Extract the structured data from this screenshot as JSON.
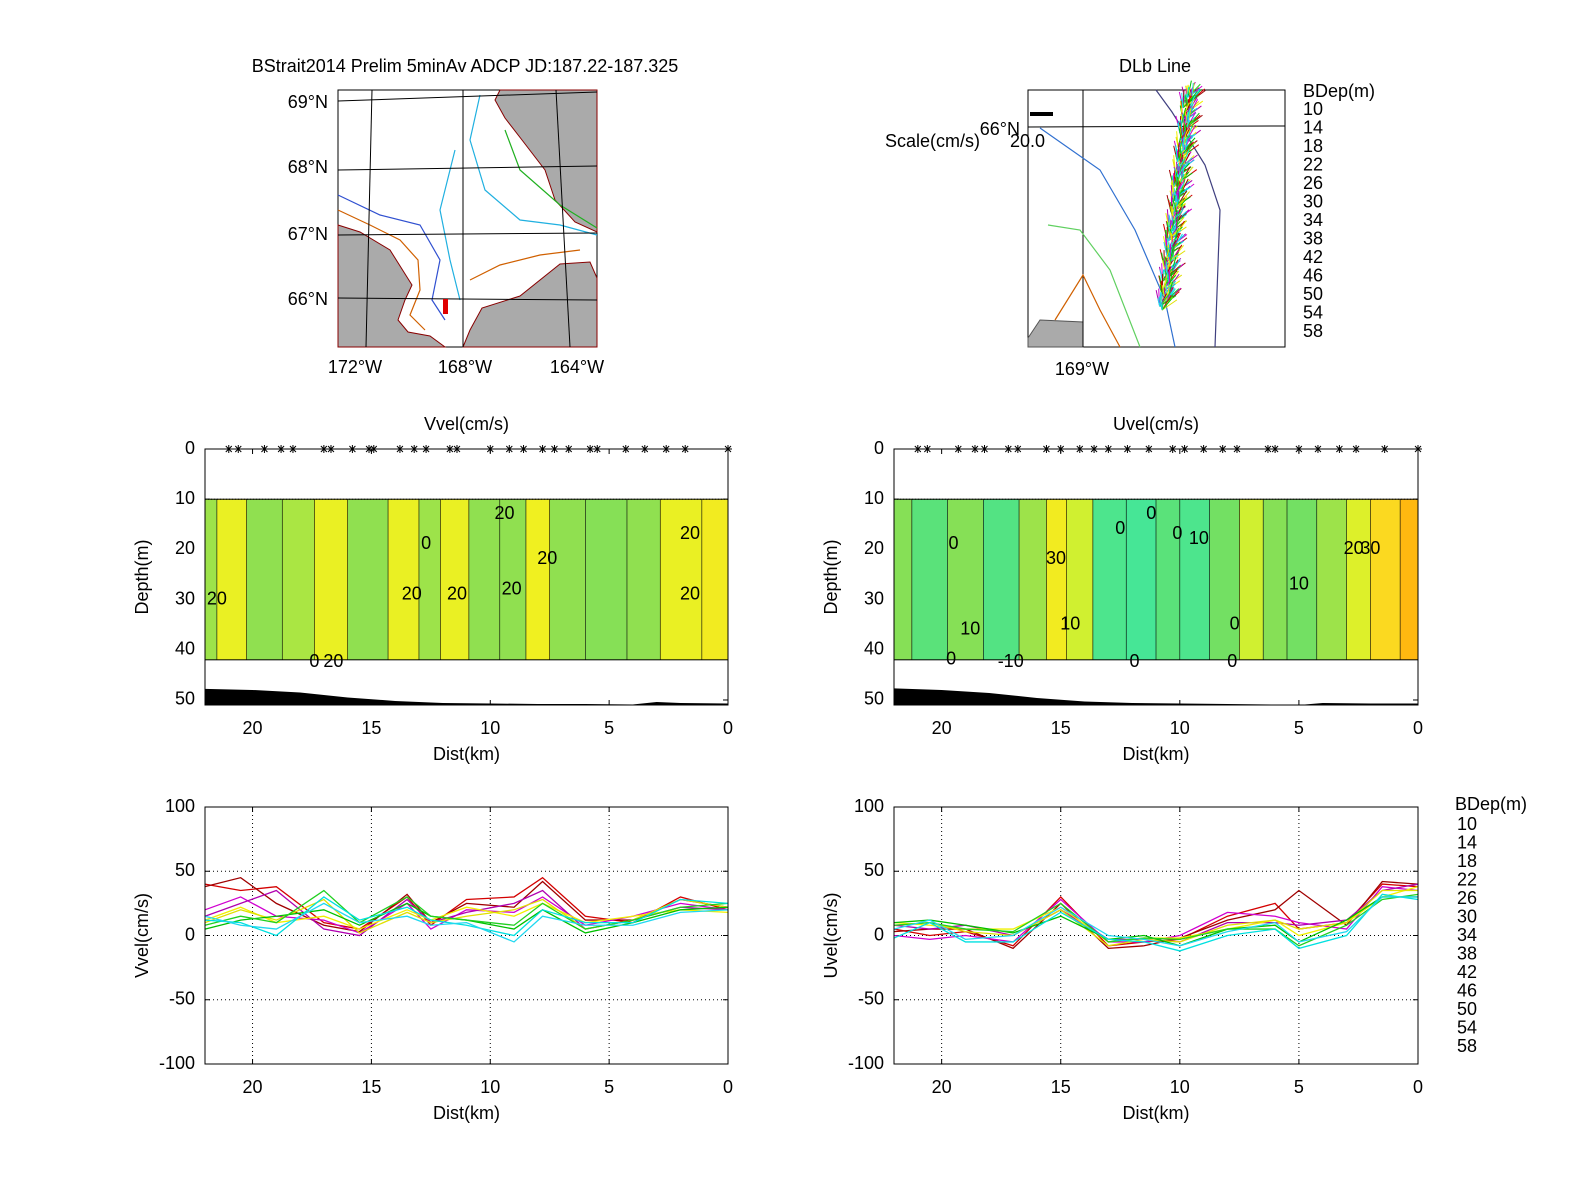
{
  "chart_data": [
    {
      "type": "map",
      "title": "BStrait2014 Prelim 5minAv ADCP JD:187.22-187.325",
      "lat_labels": [
        "69°N",
        "68°N",
        "67°N",
        "66°N"
      ],
      "lon_labels": [
        "172°W",
        "168°W",
        "164°W"
      ]
    },
    {
      "type": "map",
      "title": "DLb Line",
      "lat_labels": [
        "66°N"
      ],
      "lon_labels": [
        "169°W"
      ],
      "scale_label": "Scale(cm/s)",
      "scale_value": "20.0",
      "legend_title": "BDep(m)"
    },
    {
      "type": "contour",
      "title": "Vvel(cm/s)",
      "x_label": "Dist(km)",
      "y_label": "Depth(m)",
      "xlim": [
        22,
        0
      ],
      "ylim": [
        51,
        0
      ],
      "xticks": [
        20,
        15,
        10,
        5,
        0
      ],
      "yticks": [
        0,
        10,
        20,
        30,
        40,
        50
      ],
      "depths": [
        10,
        42
      ],
      "x": [
        22,
        21,
        19.5,
        18,
        16.8,
        15.2,
        13.4,
        12.6,
        11.6,
        10.2,
        9,
        8,
        7,
        5,
        3.5,
        2.2,
        0
      ],
      "values": [
        16,
        24,
        15,
        17,
        24,
        15,
        24,
        16,
        24,
        15,
        15,
        25,
        15,
        14,
        15,
        24,
        26
      ],
      "stations": [
        21,
        20.6,
        19.5,
        18.8,
        18.3,
        17,
        16.7,
        15.8,
        15.1,
        14.9,
        13.8,
        13.2,
        12.7,
        11.7,
        11.4,
        10,
        9.2,
        8.6,
        7.8,
        7.3,
        6.7,
        5.8,
        5.5,
        4.3,
        3.5,
        2.6,
        1.8,
        0
      ],
      "bottom": {
        "x": [
          22,
          20,
          18,
          16,
          14,
          12,
          10,
          8,
          6,
          4,
          3,
          2,
          0
        ],
        "depth": [
          47.8,
          48,
          48.5,
          49.5,
          50.2,
          50.6,
          50.7,
          50.8,
          50.8,
          50.9,
          50.4,
          50.6,
          50.7
        ]
      },
      "contour_labels": [
        {
          "value": 20,
          "x": 21.5,
          "y": 30
        },
        {
          "value": 0,
          "x": 17.4,
          "y": 42.5
        },
        {
          "value": 20,
          "x": 16.6,
          "y": 42.5
        },
        {
          "value": 0,
          "x": 12.7,
          "y": 19
        },
        {
          "value": 20,
          "x": 13.3,
          "y": 29
        },
        {
          "value": 20,
          "x": 11.4,
          "y": 29
        },
        {
          "value": 20,
          "x": 9.1,
          "y": 28
        },
        {
          "value": 20,
          "x": 7.6,
          "y": 22
        },
        {
          "value": 20,
          "x": 9.4,
          "y": 13
        },
        {
          "value": 20,
          "x": 1.6,
          "y": 17
        },
        {
          "value": 20,
          "x": 1.6,
          "y": 29
        }
      ]
    },
    {
      "type": "contour",
      "title": "Uvel(cm/s)",
      "x_label": "Dist(km)",
      "y_label": "Depth(m)",
      "xlim": [
        22,
        0
      ],
      "ylim": [
        51,
        0
      ],
      "xticks": [
        20,
        15,
        10,
        5,
        0
      ],
      "yticks": [
        0,
        10,
        20,
        30,
        40,
        50
      ],
      "depths": [
        10,
        42
      ],
      "x": [
        22,
        20.5,
        19,
        17.5,
        16,
        15.2,
        14.3,
        13,
        11.5,
        10.5,
        9.5,
        8,
        7,
        6,
        5,
        3.5,
        2.5,
        1.5,
        0
      ],
      "values": [
        14,
        8,
        14,
        6,
        16,
        26,
        20,
        4,
        2,
        8,
        4,
        12,
        20,
        14,
        12,
        16,
        22,
        30,
        36
      ],
      "stations": [
        21,
        20.6,
        19.3,
        18.6,
        18.2,
        17.2,
        16.8,
        15.6,
        15,
        14.2,
        13.6,
        13,
        12.2,
        11.3,
        10.3,
        9.8,
        9,
        8.2,
        7.6,
        6.3,
        6,
        5,
        4.2,
        3.3,
        2.6,
        1.4,
        0
      ],
      "bottom": {
        "x": [
          22,
          20,
          18,
          16,
          14,
          12,
          10,
          8,
          6,
          5,
          4,
          2,
          0
        ],
        "depth": [
          47.7,
          48,
          48.6,
          49.6,
          50.3,
          50.6,
          50.7,
          50.8,
          50.9,
          51,
          50.6,
          50.7,
          50.7
        ]
      },
      "contour_labels": [
        {
          "value": 0,
          "x": 19.5,
          "y": 19
        },
        {
          "value": 10,
          "x": 18.8,
          "y": 36
        },
        {
          "value": 0,
          "x": 19.6,
          "y": 42
        },
        {
          "value": -10,
          "x": 17.1,
          "y": 42.5
        },
        {
          "value": 30,
          "x": 15.2,
          "y": 22
        },
        {
          "value": 10,
          "x": 14.6,
          "y": 35
        },
        {
          "value": 0,
          "x": 12.5,
          "y": 16
        },
        {
          "value": 0,
          "x": 11.2,
          "y": 13
        },
        {
          "value": 0,
          "x": 10.1,
          "y": 17
        },
        {
          "value": 10,
          "x": 9.2,
          "y": 18
        },
        {
          "value": 0,
          "x": 7.7,
          "y": 35
        },
        {
          "value": 0,
          "x": 11.9,
          "y": 42.5
        },
        {
          "value": 0,
          "x": 7.8,
          "y": 42.5
        },
        {
          "value": 10,
          "x": 5,
          "y": 27
        },
        {
          "value": 20,
          "x": 2.7,
          "y": 20
        },
        {
          "value": 30,
          "x": 2,
          "y": 20
        }
      ]
    },
    {
      "type": "line",
      "x_label": "Dist(km)",
      "y_label": "Vvel(cm/s)",
      "xlim": [
        22,
        0
      ],
      "ylim": [
        -100,
        100
      ],
      "xticks": [
        20,
        15,
        10,
        5,
        0
      ],
      "yticks": [
        -100,
        -50,
        0,
        50,
        100
      ],
      "grid": true,
      "x": [
        22,
        20.5,
        19,
        17,
        15.5,
        13.5,
        12.5,
        11,
        9,
        7.8,
        6,
        4,
        2,
        0
      ],
      "series": [
        {
          "name": "10",
          "color": "#d40000",
          "values": [
            40,
            35,
            38,
            10,
            5,
            30,
            8,
            28,
            30,
            45,
            15,
            10,
            30,
            20
          ]
        },
        {
          "name": "14",
          "color": "#a00000",
          "values": [
            38,
            45,
            25,
            8,
            3,
            32,
            10,
            25,
            22,
            42,
            12,
            12,
            28,
            22
          ]
        },
        {
          "name": "18",
          "color": "#d000d0",
          "values": [
            20,
            30,
            15,
            12,
            2,
            25,
            5,
            20,
            18,
            30,
            8,
            15,
            25,
            20
          ]
        },
        {
          "name": "22",
          "color": "#b000b0",
          "values": [
            15,
            25,
            35,
            5,
            0,
            28,
            10,
            18,
            25,
            35,
            5,
            12,
            22,
            20
          ]
        },
        {
          "name": "26",
          "color": "#f0f000",
          "values": [
            12,
            22,
            10,
            15,
            5,
            20,
            12,
            22,
            15,
            25,
            10,
            15,
            20,
            18
          ]
        },
        {
          "name": "30",
          "color": "#e0e000",
          "values": [
            10,
            20,
            12,
            28,
            2,
            18,
            10,
            15,
            20,
            28,
            5,
            12,
            28,
            22
          ]
        },
        {
          "name": "34",
          "color": "#00c000",
          "values": [
            5,
            12,
            15,
            20,
            8,
            25,
            15,
            12,
            5,
            20,
            2,
            10,
            20,
            22
          ]
        },
        {
          "name": "38",
          "color": "#20d020",
          "values": [
            8,
            15,
            10,
            35,
            10,
            30,
            15,
            12,
            8,
            25,
            5,
            12,
            22,
            25
          ]
        },
        {
          "name": "42",
          "color": "#00e0e0",
          "values": [
            12,
            10,
            0,
            30,
            12,
            22,
            12,
            8,
            0,
            20,
            10,
            10,
            28,
            25
          ]
        },
        {
          "name": "46",
          "color": "#20d8f0",
          "values": [
            15,
            8,
            5,
            25,
            10,
            15,
            8,
            10,
            -5,
            15,
            8,
            8,
            18,
            20
          ]
        },
        {
          "name": "50",
          "color": "#0000b0",
          "values": [
            null,
            null,
            null,
            null,
            null,
            null,
            null,
            null,
            null,
            null,
            null,
            null,
            null,
            null
          ]
        },
        {
          "name": "54",
          "color": "#000090",
          "values": [
            null,
            null,
            null,
            null,
            null,
            null,
            null,
            null,
            null,
            null,
            null,
            null,
            null,
            null
          ]
        },
        {
          "name": "58",
          "color": "#000000",
          "values": [
            null,
            null,
            null,
            null,
            null,
            null,
            null,
            null,
            null,
            null,
            null,
            null,
            null,
            null
          ]
        }
      ]
    },
    {
      "type": "line",
      "x_label": "Dist(km)",
      "y_label": "Uvel(cm/s)",
      "legend_title": "BDep(m)",
      "xlim": [
        22,
        0
      ],
      "ylim": [
        -100,
        100
      ],
      "xticks": [
        20,
        15,
        10,
        5,
        0
      ],
      "yticks": [
        -100,
        -50,
        0,
        50,
        100
      ],
      "grid": true,
      "x": [
        22,
        20.5,
        19,
        17,
        15,
        13,
        11.5,
        10,
        8,
        6,
        5,
        3,
        1.5,
        0
      ],
      "series": [
        {
          "name": "10",
          "color": "#d40000",
          "values": [
            5,
            0,
            3,
            -8,
            30,
            -8,
            -5,
            -3,
            15,
            25,
            5,
            10,
            40,
            38
          ]
        },
        {
          "name": "14",
          "color": "#a00000",
          "values": [
            3,
            5,
            5,
            -10,
            25,
            -10,
            -8,
            -2,
            12,
            20,
            35,
            8,
            42,
            40
          ]
        },
        {
          "name": "18",
          "color": "#d000d0",
          "values": [
            0,
            -3,
            0,
            -5,
            28,
            -5,
            -5,
            0,
            18,
            15,
            10,
            5,
            38,
            35
          ]
        },
        {
          "name": "22",
          "color": "#b000b0",
          "values": [
            8,
            5,
            8,
            0,
            20,
            -3,
            -3,
            -5,
            10,
            10,
            8,
            12,
            35,
            40
          ]
        },
        {
          "name": "26",
          "color": "#f0f000",
          "values": [
            10,
            8,
            5,
            5,
            22,
            -5,
            -2,
            -2,
            5,
            12,
            0,
            10,
            30,
            38
          ]
        },
        {
          "name": "30",
          "color": "#e0e000",
          "values": [
            8,
            10,
            3,
            0,
            20,
            -8,
            -3,
            -5,
            8,
            12,
            5,
            10,
            35,
            35
          ]
        },
        {
          "name": "34",
          "color": "#00c000",
          "values": [
            10,
            12,
            8,
            2,
            15,
            -3,
            0,
            -8,
            5,
            8,
            -5,
            12,
            30,
            30
          ]
        },
        {
          "name": "38",
          "color": "#20d020",
          "values": [
            8,
            10,
            5,
            3,
            25,
            -5,
            -2,
            -3,
            5,
            5,
            -8,
            8,
            28,
            32
          ]
        },
        {
          "name": "42",
          "color": "#00e0e0",
          "values": [
            -2,
            10,
            -5,
            -5,
            18,
            -3,
            -5,
            -12,
            0,
            5,
            -10,
            0,
            32,
            28
          ]
        },
        {
          "name": "46",
          "color": "#20d8f0",
          "values": [
            5,
            12,
            -3,
            0,
            22,
            0,
            -3,
            -8,
            3,
            10,
            -5,
            3,
            30,
            30
          ]
        },
        {
          "name": "50",
          "color": "#0000b0",
          "values": [
            null,
            null,
            null,
            null,
            null,
            null,
            null,
            null,
            null,
            null,
            null,
            null,
            null,
            null
          ]
        },
        {
          "name": "54",
          "color": "#000090",
          "values": [
            null,
            null,
            null,
            null,
            null,
            null,
            null,
            null,
            null,
            null,
            null,
            null,
            null,
            null
          ]
        },
        {
          "name": "58",
          "color": "#000000",
          "values": [
            null,
            null,
            null,
            null,
            null,
            null,
            null,
            null,
            null,
            null,
            null,
            null,
            null,
            null
          ]
        }
      ]
    }
  ]
}
